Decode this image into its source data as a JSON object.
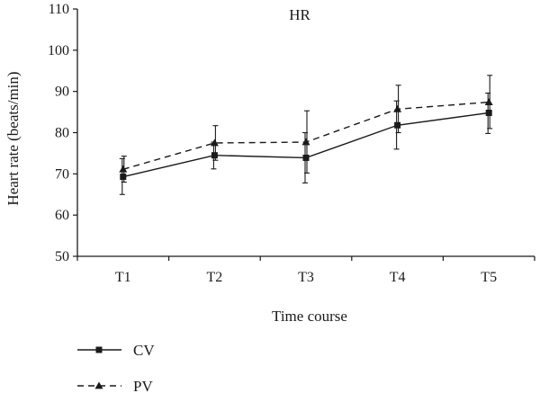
{
  "chart_data": {
    "type": "line",
    "title": "HR",
    "xlabel": "Time course",
    "ylabel": "Heart rate (beats/min)",
    "categories": [
      "T1",
      "T2",
      "T3",
      "T4",
      "T5"
    ],
    "ylim": [
      50,
      110
    ],
    "yticks": [
      50,
      60,
      70,
      80,
      90,
      100,
      110
    ],
    "grid": false,
    "legend_position": "bottom-left",
    "series": [
      {
        "name": "CV",
        "marker": "square",
        "line_style": "solid",
        "color": "#1a1a1a",
        "values": [
          69.3,
          74.5,
          73.9,
          81.8,
          84.8
        ],
        "error_low": [
          65.0,
          71.2,
          67.8,
          76.0,
          79.8
        ],
        "error_high": [
          73.7,
          77.7,
          80.0,
          87.7,
          89.6
        ]
      },
      {
        "name": "PV",
        "marker": "triangle",
        "line_style": "dashed",
        "color": "#1a1a1a",
        "values": [
          71.1,
          77.5,
          77.7,
          85.7,
          87.4
        ],
        "error_low": [
          68.0,
          73.3,
          70.2,
          80.0,
          81.0
        ],
        "error_high": [
          74.3,
          81.7,
          85.3,
          91.5,
          93.9
        ]
      }
    ]
  }
}
